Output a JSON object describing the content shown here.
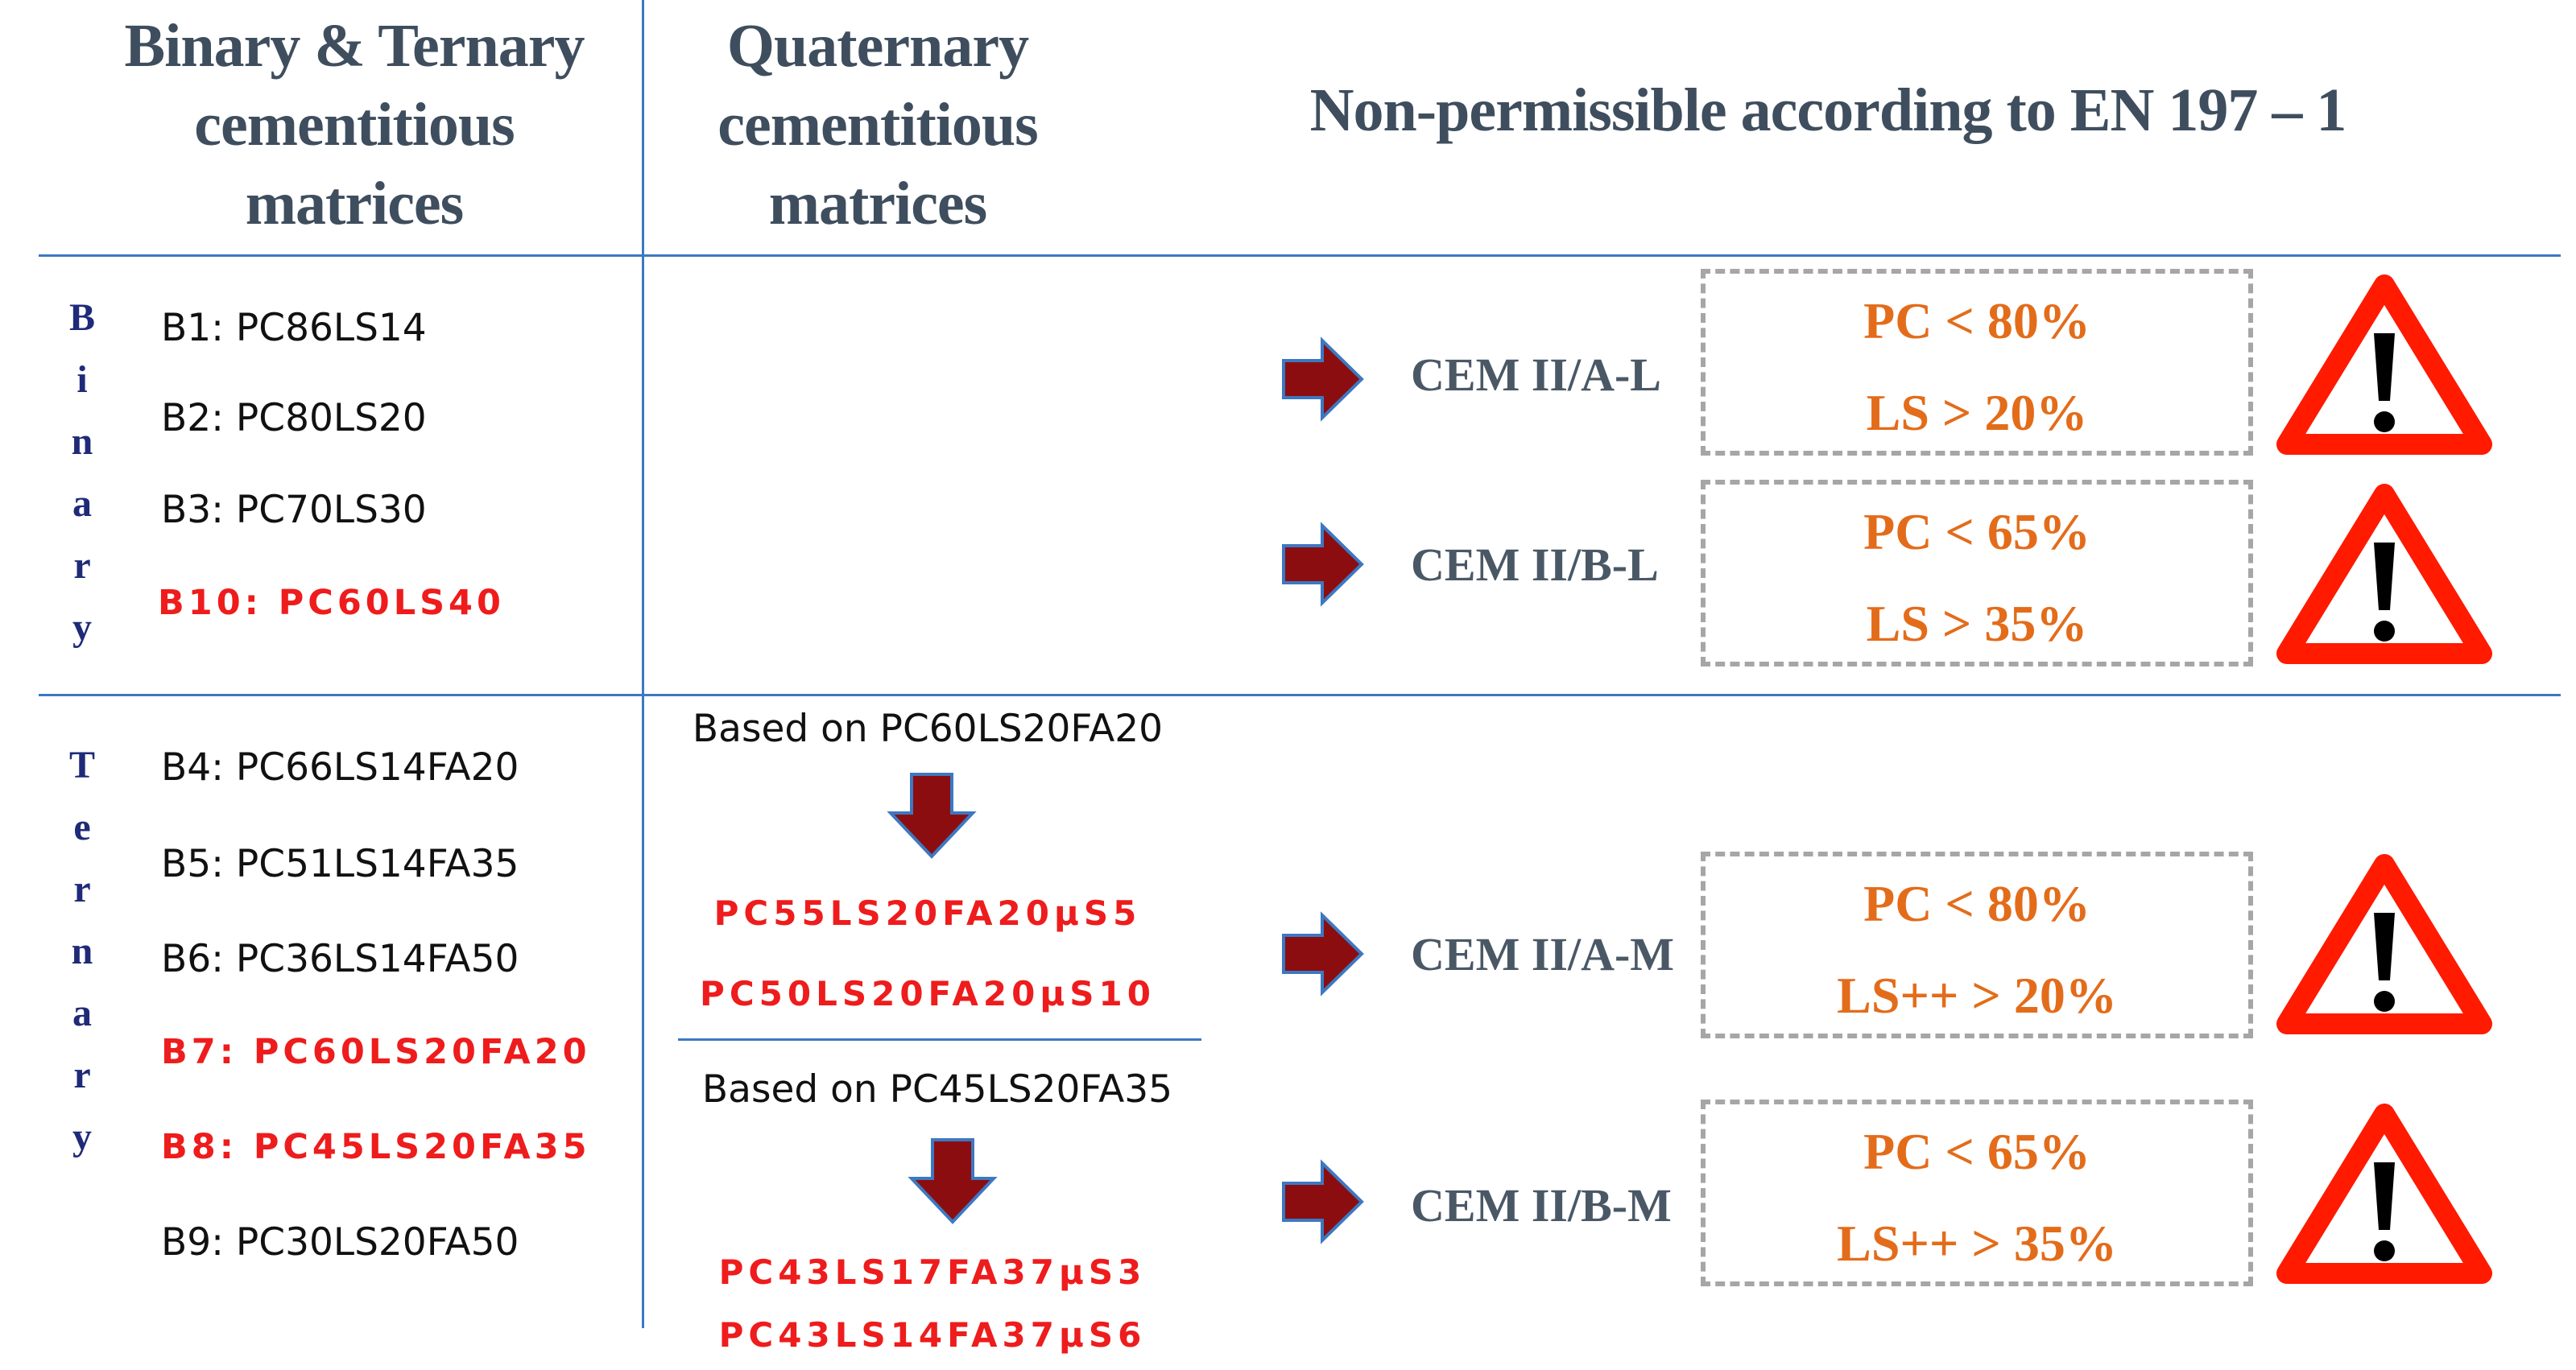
{
  "headers": {
    "col1": [
      "Binary & Ternary",
      "cementitious",
      "matrices"
    ],
    "col2": [
      "Quaternary",
      "cementitious",
      "matrices"
    ],
    "col3": "Non-permissible according to EN 197 – 1"
  },
  "groups": {
    "binary": {
      "label": [
        "B",
        "i",
        "n",
        "a",
        "r",
        "y"
      ]
    },
    "ternary": {
      "label": [
        "T",
        "e",
        "r",
        "n",
        "a",
        "r",
        "y"
      ]
    }
  },
  "binary_items": [
    {
      "text": "B1: PC86LS14",
      "highlight": false
    },
    {
      "text": "B2: PC80LS20",
      "highlight": false
    },
    {
      "text": "B3: PC70LS30",
      "highlight": false
    },
    {
      "text": "B10: PC60LS40",
      "highlight": true
    }
  ],
  "ternary_items": [
    {
      "text": "B4: PC66LS14FA20",
      "highlight": false
    },
    {
      "text": "B5: PC51LS14FA35",
      "highlight": false
    },
    {
      "text": "B6: PC36LS14FA50",
      "highlight": false
    },
    {
      "text": "B7: PC60LS20FA20",
      "highlight": true
    },
    {
      "text": "B8: PC45LS20FA35",
      "highlight": true
    },
    {
      "text": "B9: PC30LS20FA50",
      "highlight": false
    }
  ],
  "quaternary": {
    "group1": {
      "based_on": "Based on PC60LS20FA20",
      "mixes": [
        "PC55LS20FA20µS5",
        "PC50LS20FA20µS10"
      ]
    },
    "group2": {
      "based_on": "Based on PC45LS20FA35",
      "mixes": [
        "PC43LS17FA37µS3",
        "PC43LS14FA37µS6"
      ]
    }
  },
  "classes": [
    {
      "name": "CEM II/A-L",
      "conditions": [
        "PC < 80%",
        "LS > 20%"
      ]
    },
    {
      "name": "CEM II/B-L",
      "conditions": [
        "PC < 65%",
        "LS > 35%"
      ]
    },
    {
      "name": "CEM II/A-M",
      "conditions": [
        "PC < 80%",
        "LS++ > 20%"
      ]
    },
    {
      "name": "CEM II/B-M",
      "conditions": [
        "PC < 65%",
        "LS++ > 35%"
      ]
    }
  ],
  "colors": {
    "header_text": "#3f4e5e",
    "divider": "#3d78c2",
    "highlight_red": "#ee1c1c",
    "condition_orange": "#e36c1a",
    "arrow_fill": "#8b0d10",
    "arrow_stroke": "#3d78c2",
    "warning_red": "#ff1a00"
  },
  "icons": {
    "arrow": "right-arrow-icon",
    "down_arrow": "down-arrow-icon",
    "warning": "warning-triangle-icon"
  }
}
